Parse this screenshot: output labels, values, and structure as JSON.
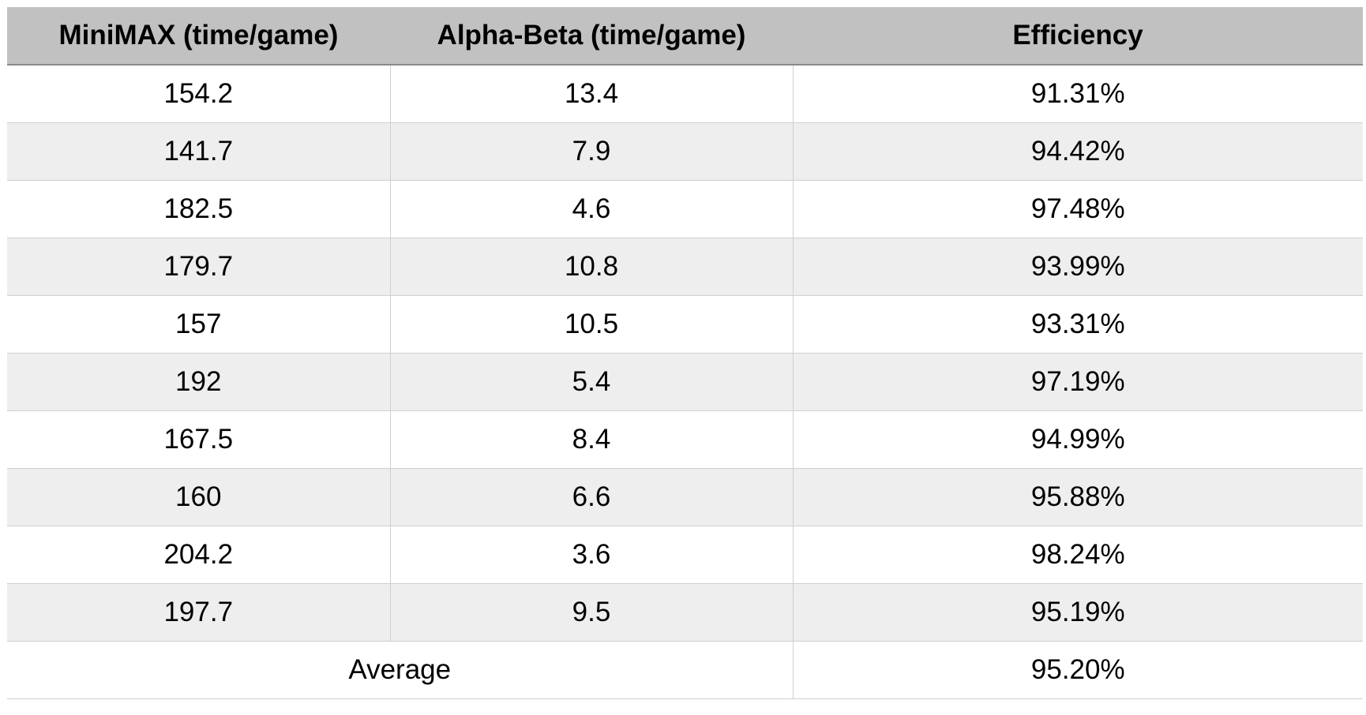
{
  "table": {
    "headers": [
      "MiniMAX (time/game)",
      "Alpha-Beta (time/game)",
      "Efficiency"
    ],
    "rows": [
      [
        "154.2",
        "13.4",
        "91.31%"
      ],
      [
        "141.7",
        "7.9",
        "94.42%"
      ],
      [
        "182.5",
        "4.6",
        "97.48%"
      ],
      [
        "179.7",
        "10.8",
        "93.99%"
      ],
      [
        "157",
        "10.5",
        "93.31%"
      ],
      [
        "192",
        "5.4",
        "97.19%"
      ],
      [
        "167.5",
        "8.4",
        "94.99%"
      ],
      [
        "160",
        "6.6",
        "95.88%"
      ],
      [
        "204.2",
        "3.6",
        "98.24%"
      ],
      [
        "197.7",
        "9.5",
        "95.19%"
      ]
    ],
    "average": {
      "label": "Average",
      "value": "95.20%"
    }
  },
  "colors": {
    "header_bg": "#c1c1c1",
    "row_alt_bg": "#eeeeee",
    "row_bg": "#ffffff",
    "grid_line": "#cfcfcf"
  }
}
